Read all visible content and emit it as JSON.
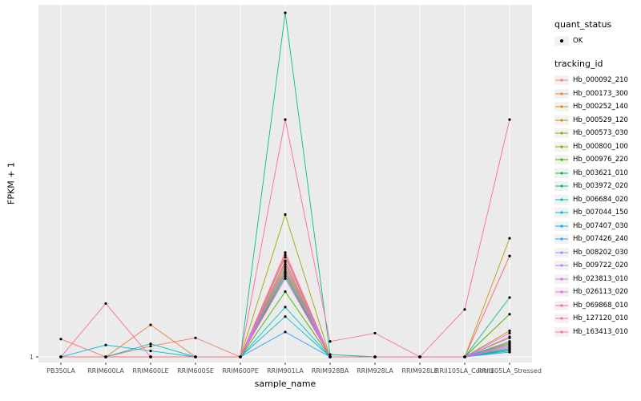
{
  "chart_data": {
    "type": "line",
    "title": "",
    "xlabel": "sample_name",
    "ylabel": "FPKM + 1",
    "panel_bg": "#EBEBEB",
    "grid_color": "#FFFFFF",
    "point_color": "#000000",
    "grid": true,
    "legend_position": "right",
    "ylim": [
      1,
      30
    ],
    "y_ticks": [
      1
    ],
    "categories": [
      "PB350LA",
      "RRIM600LA",
      "RRIM600LE",
      "RRIM600SE",
      "RRIM600PE",
      "RRIM901LA",
      "RRIM928BA",
      "RRIM928LA",
      "RRIM928LE",
      "RRII105LA_Control",
      "RRII105LA_Stressed"
    ],
    "series": [
      {
        "name": "Hb_000092_210",
        "color": "#F8766D",
        "values": [
          2.5,
          1,
          1.9,
          2.6,
          1,
          9.0,
          1,
          1,
          1,
          1,
          9.5
        ]
      },
      {
        "name": "Hb_000173_300",
        "color": "#EA8331",
        "values": [
          1,
          1,
          3.7,
          1,
          1,
          8.2,
          1,
          1,
          1,
          1,
          2.2
        ]
      },
      {
        "name": "Hb_000252_140",
        "color": "#D89000",
        "values": [
          1,
          1,
          1,
          1,
          1,
          8.8,
          1,
          1,
          1,
          1,
          2.6
        ]
      },
      {
        "name": "Hb_000529_120",
        "color": "#C09B00",
        "values": [
          1,
          1,
          1,
          1,
          1,
          9.4,
          1,
          1,
          1,
          1,
          11.0
        ]
      },
      {
        "name": "Hb_000573_030",
        "color": "#A3A500",
        "values": [
          1,
          1,
          1,
          1,
          1,
          13.0,
          1,
          1,
          1,
          1,
          3.2
        ]
      },
      {
        "name": "Hb_000800_100",
        "color": "#7CAE00",
        "values": [
          1,
          1,
          1,
          1,
          1,
          8.4,
          1,
          1,
          1,
          1,
          2.1
        ]
      },
      {
        "name": "Hb_000976_220",
        "color": "#39B600",
        "values": [
          1,
          1,
          1,
          1,
          1,
          6.5,
          1,
          1,
          1,
          1,
          4.6
        ]
      },
      {
        "name": "Hb_003621_010",
        "color": "#00BB4E",
        "values": [
          1,
          1,
          1,
          1,
          1,
          7.8,
          1,
          1,
          1,
          1,
          1.6
        ]
      },
      {
        "name": "Hb_003972_020",
        "color": "#00C087",
        "values": [
          1,
          1,
          1,
          1,
          1,
          30.0,
          1.2,
          1,
          1,
          1,
          6.0
        ]
      },
      {
        "name": "Hb_006684_020",
        "color": "#00C0B8",
        "values": [
          1,
          1,
          2.1,
          1,
          1,
          5.2,
          1,
          1,
          1,
          1,
          1.7
        ]
      },
      {
        "name": "Hb_007044_150",
        "color": "#00BCD8",
        "values": [
          1,
          2.0,
          1.5,
          1,
          1,
          4.4,
          1,
          1,
          1,
          1,
          1.5
        ]
      },
      {
        "name": "Hb_007407_030",
        "color": "#00B0F6",
        "values": [
          1,
          1,
          1,
          1,
          1,
          8.0,
          1,
          1,
          1,
          1,
          2.3
        ]
      },
      {
        "name": "Hb_007426_240",
        "color": "#35A2FF",
        "values": [
          1,
          1,
          1,
          1,
          1,
          3.1,
          1,
          1,
          1,
          1,
          1.4
        ]
      },
      {
        "name": "Hb_008202_030",
        "color": "#9590FF",
        "values": [
          1,
          1,
          1,
          1,
          1,
          8.6,
          1,
          1,
          1,
          1,
          2.0
        ]
      },
      {
        "name": "Hb_009722_020",
        "color": "#C77CFF",
        "values": [
          1,
          1,
          1,
          1,
          1,
          9.1,
          1,
          1,
          1,
          1,
          2.7
        ]
      },
      {
        "name": "Hb_023813_010",
        "color": "#E76BF3",
        "values": [
          1,
          1,
          1,
          1,
          1,
          8.1,
          1,
          1,
          1,
          1,
          1.9
        ]
      },
      {
        "name": "Hb_026113_020",
        "color": "#FA62DB",
        "values": [
          1,
          1,
          1,
          1,
          1,
          9.6,
          1,
          1,
          1,
          1,
          3.0
        ]
      },
      {
        "name": "Hb_069868_010",
        "color": "#FF62BC",
        "values": [
          1,
          1,
          1,
          1,
          1,
          7.6,
          1,
          1,
          1,
          1,
          1.8
        ]
      },
      {
        "name": "Hb_127120_010",
        "color": "#FF6A98",
        "values": [
          1,
          5.5,
          1,
          1,
          1,
          21.0,
          2.3,
          3.0,
          1,
          5.0,
          21.0
        ]
      },
      {
        "name": "Hb_163413_010",
        "color": "#FC717F",
        "values": [
          1,
          1,
          1,
          1,
          1,
          9.8,
          1,
          1,
          1,
          1,
          9.5
        ]
      }
    ]
  },
  "legend": {
    "quant_status": {
      "title": "quant_status",
      "items": [
        {
          "label": "OK"
        }
      ]
    },
    "tracking_id": {
      "title": "tracking_id"
    }
  }
}
